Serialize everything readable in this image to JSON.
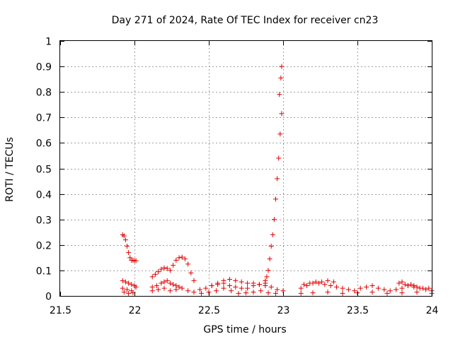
{
  "chart_data": {
    "type": "scatter",
    "title": "Day 271 of 2024, Rate Of TEC Index for receiver cn23",
    "xlabel": "GPS time / hours",
    "ylabel": "ROTI / TECUs",
    "xlim": [
      21.5,
      24
    ],
    "ylim": [
      0,
      1
    ],
    "xticks": [
      "21.5",
      "22",
      "22.5",
      "23",
      "23.5",
      "24"
    ],
    "yticks": [
      "0",
      "0.1",
      "0.2",
      "0.3",
      "0.4",
      "0.5",
      "0.6",
      "0.7",
      "0.8",
      "0.9",
      "1"
    ],
    "grid": true,
    "marker": "plus",
    "color": "#e00000",
    "series": [
      {
        "x": [
          21.92,
          21.93,
          21.94,
          21.95,
          21.96,
          21.97,
          21.98,
          21.99,
          22.0,
          22.01,
          21.92,
          21.94,
          21.96,
          21.98,
          22.0,
          21.92,
          21.95,
          21.98,
          22.01,
          21.93,
          21.96,
          21.99,
          22.12,
          22.14,
          22.16,
          22.18,
          22.2,
          22.22,
          22.24,
          22.26,
          22.28,
          22.3,
          22.32,
          22.34,
          22.36,
          22.38,
          22.4,
          22.12,
          22.15,
          22.18,
          22.2,
          22.22,
          22.24,
          22.26,
          22.28,
          22.3,
          22.12,
          22.16,
          22.2,
          22.24,
          22.28,
          22.32,
          22.36,
          22.4,
          22.44,
          22.48,
          22.52,
          22.56,
          22.6,
          22.64,
          22.68,
          22.72,
          22.76,
          22.8,
          22.84,
          22.88,
          22.92,
          22.96,
          23.0,
          22.45,
          22.5,
          22.55,
          22.6,
          22.65,
          22.7,
          22.75,
          22.8,
          22.85,
          22.9,
          22.95,
          22.52,
          22.56,
          22.6,
          22.64,
          22.68,
          22.72,
          22.76,
          22.8,
          22.84,
          22.88,
          22.88,
          22.89,
          22.9,
          22.91,
          22.92,
          22.93,
          22.94,
          22.95,
          22.96,
          22.97,
          22.98,
          22.99,
          23.12,
          23.16,
          23.2,
          23.24,
          23.28,
          23.32,
          23.36,
          23.4,
          23.44,
          23.48,
          23.52,
          23.56,
          23.6,
          23.64,
          23.68,
          23.72,
          23.76,
          23.8,
          23.84,
          23.88,
          23.92,
          23.96,
          24.0,
          23.14,
          23.18,
          23.22,
          23.26,
          23.3,
          23.34,
          23.78,
          23.8,
          23.82,
          23.84,
          23.86,
          23.88,
          23.9,
          23.94,
          23.98,
          23.12,
          23.2,
          23.3,
          23.4,
          23.5,
          23.6,
          23.7,
          23.8,
          23.9,
          24.0
        ],
        "y": [
          0.24,
          0.235,
          0.22,
          0.195,
          0.17,
          0.15,
          0.14,
          0.14,
          0.138,
          0.138,
          0.06,
          0.055,
          0.05,
          0.045,
          0.04,
          0.03,
          0.025,
          0.02,
          0.035,
          0.015,
          0.01,
          0.012,
          0.075,
          0.085,
          0.095,
          0.105,
          0.11,
          0.108,
          0.1,
          0.12,
          0.14,
          0.15,
          0.152,
          0.145,
          0.125,
          0.09,
          0.06,
          0.035,
          0.04,
          0.05,
          0.055,
          0.06,
          0.05,
          0.045,
          0.04,
          0.035,
          0.02,
          0.025,
          0.03,
          0.02,
          0.025,
          0.03,
          0.02,
          0.015,
          0.025,
          0.03,
          0.04,
          0.05,
          0.06,
          0.065,
          0.06,
          0.055,
          0.05,
          0.05,
          0.045,
          0.04,
          0.035,
          0.025,
          0.02,
          0.01,
          0.015,
          0.02,
          0.03,
          0.02,
          0.01,
          0.012,
          0.015,
          0.02,
          0.012,
          0.01,
          0.04,
          0.045,
          0.05,
          0.04,
          0.035,
          0.03,
          0.03,
          0.04,
          0.045,
          0.05,
          0.06,
          0.075,
          0.1,
          0.145,
          0.195,
          0.24,
          0.3,
          0.38,
          0.46,
          0.54,
          0.635,
          0.715,
          0.03,
          0.04,
          0.05,
          0.05,
          0.045,
          0.04,
          0.035,
          0.03,
          0.025,
          0.02,
          0.03,
          0.035,
          0.04,
          0.03,
          0.025,
          0.02,
          0.025,
          0.03,
          0.04,
          0.035,
          0.03,
          0.025,
          0.02,
          0.045,
          0.05,
          0.055,
          0.055,
          0.06,
          0.055,
          0.05,
          0.055,
          0.045,
          0.04,
          0.045,
          0.04,
          0.035,
          0.03,
          0.03,
          0.01,
          0.012,
          0.015,
          0.01,
          0.012,
          0.015,
          0.01,
          0.012,
          0.015,
          0.01
        ]
      },
      {
        "x": [
          22.975,
          22.985,
          22.99
        ],
        "y": [
          0.79,
          0.855,
          0.9
        ]
      }
    ]
  }
}
